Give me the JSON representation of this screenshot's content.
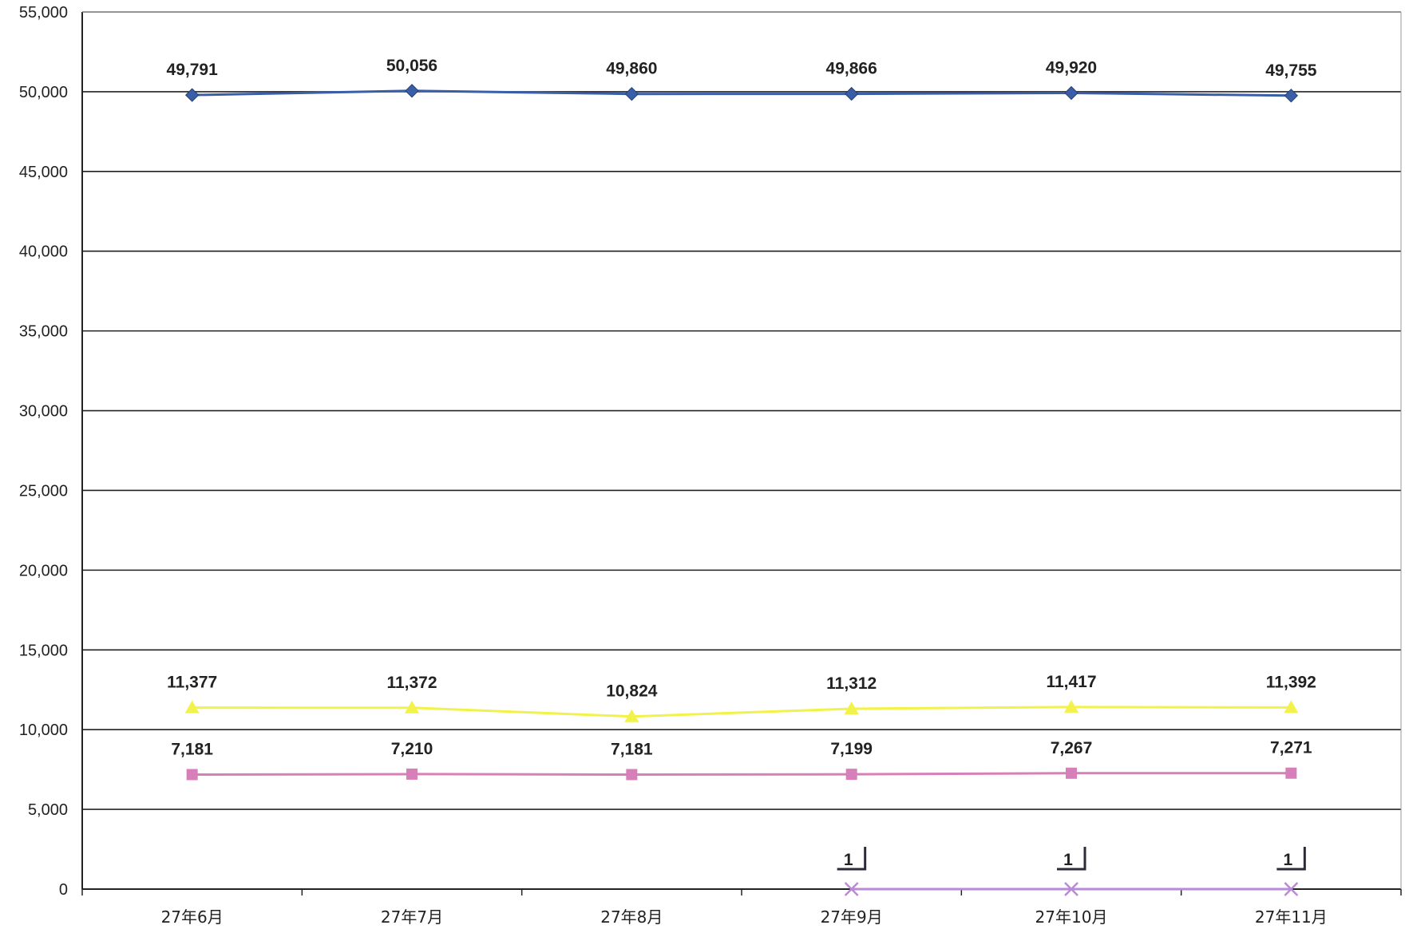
{
  "chart_data": {
    "type": "line",
    "categories": [
      "27年6月",
      "27年7月",
      "27年8月",
      "27年9月",
      "27年10月",
      "27年11月"
    ],
    "ylim": [
      0,
      55000
    ],
    "yticks": [
      0,
      5000,
      10000,
      15000,
      20000,
      25000,
      30000,
      35000,
      40000,
      45000,
      50000,
      55000
    ],
    "ytick_labels": [
      "0",
      "5,000",
      "10,000",
      "15,000",
      "20,000",
      "25,000",
      "30,000",
      "35,000",
      "40,000",
      "45,000",
      "50,000",
      "55,000"
    ],
    "grid": true,
    "legend": "none",
    "series": [
      {
        "color": "#3a5ea8",
        "marker": "diamond",
        "values": [
          49791,
          50056,
          49860,
          49866,
          49920,
          49755
        ],
        "labels": [
          "49,791",
          "50,056",
          "49,860",
          "49,866",
          "49,920",
          "49,755"
        ]
      },
      {
        "color": "#f2f24a",
        "marker": "triangle",
        "values": [
          11377,
          11372,
          10824,
          11312,
          11417,
          11392
        ],
        "labels": [
          "11,377",
          "11,372",
          "10,824",
          "11,312",
          "11,417",
          "11,392"
        ]
      },
      {
        "color": "#d77fb8",
        "marker": "square",
        "values": [
          7181,
          7210,
          7181,
          7199,
          7267,
          7271
        ],
        "labels": [
          "7,181",
          "7,210",
          "7,181",
          "7,199",
          "7,267",
          "7,271"
        ]
      },
      {
        "color": "#b98ad6",
        "marker": "x",
        "values": [
          null,
          null,
          null,
          1,
          1,
          1
        ],
        "labels": [
          "",
          "",
          "",
          "1",
          "1",
          "1"
        ]
      }
    ]
  }
}
